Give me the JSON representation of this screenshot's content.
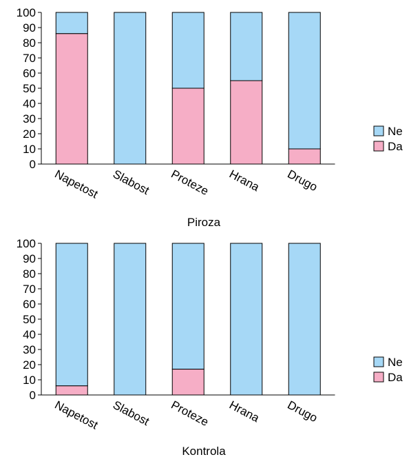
{
  "colors": {
    "Ne": "#a6d8f6",
    "Da": "#f6aec6"
  },
  "chart_data": [
    {
      "type": "bar",
      "stacked": true,
      "categories": [
        "Napetost",
        "Slabost",
        "Proteze",
        "Hrana",
        "Drugo"
      ],
      "series": [
        {
          "name": "Da",
          "values": [
            86,
            0,
            50,
            55,
            10
          ]
        },
        {
          "name": "Ne",
          "values": [
            14,
            100,
            50,
            45,
            90
          ]
        }
      ],
      "xlabel": "Piroza",
      "ylabel": "",
      "ylim": [
        0,
        100
      ],
      "yticks": [
        "0",
        "10",
        "20",
        "30",
        "40",
        "50",
        "60",
        "70",
        "80",
        "90",
        "100"
      ],
      "legend": {
        "position": "right",
        "items": [
          "Ne",
          "Da"
        ]
      },
      "grid": false
    },
    {
      "type": "bar",
      "stacked": true,
      "categories": [
        "Napetost",
        "Slabost",
        "Proteze",
        "Hrana",
        "Drugo"
      ],
      "series": [
        {
          "name": "Da",
          "values": [
            6,
            0,
            17,
            0,
            0
          ]
        },
        {
          "name": "Ne",
          "values": [
            94,
            100,
            83,
            100,
            100
          ]
        }
      ],
      "xlabel": "Kontrola",
      "ylabel": "",
      "ylim": [
        0,
        100
      ],
      "yticks": [
        "0",
        "10",
        "20",
        "30",
        "40",
        "50",
        "60",
        "70",
        "80",
        "90",
        "100"
      ],
      "legend": {
        "position": "right",
        "items": [
          "Ne",
          "Da"
        ]
      },
      "grid": false
    }
  ]
}
